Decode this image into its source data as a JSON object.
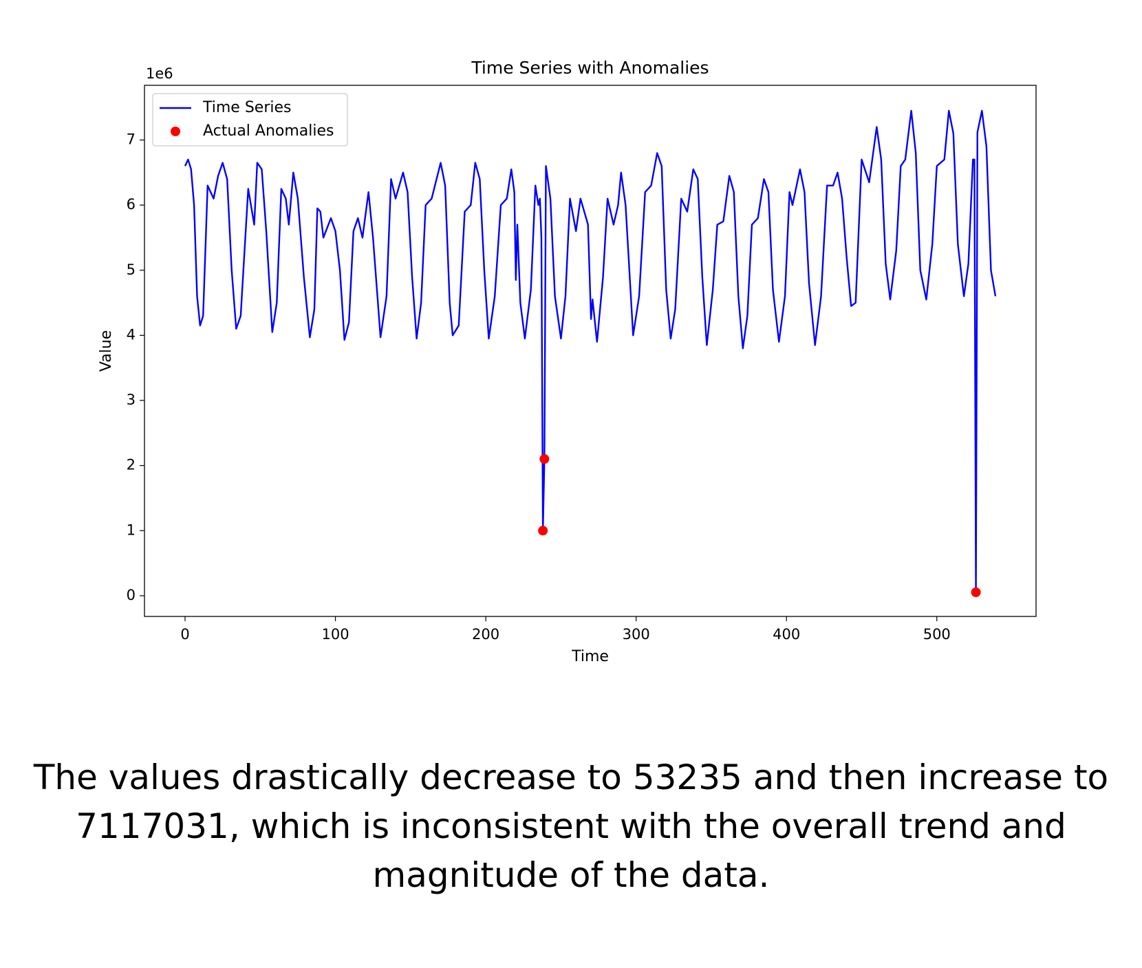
{
  "chart_data": {
    "type": "line",
    "title": "Time Series with Anomalies",
    "x_label": "Time",
    "y_label": "Value",
    "y_multiplier_label": "1e6",
    "xlim": [
      -27,
      566
    ],
    "ylim": [
      -0.318,
      7.84
    ],
    "xticks": [
      0,
      100,
      200,
      300,
      400,
      500
    ],
    "yticks": [
      0,
      1,
      2,
      3,
      4,
      5,
      6,
      7
    ],
    "legend": "upper left",
    "series": [
      {
        "name": "Time Series",
        "type": "line",
        "color": "#0000ff",
        "x": [
          0,
          2,
          4,
          6,
          8,
          10,
          12,
          15,
          17,
          19,
          22,
          25,
          28,
          31,
          34,
          37,
          42,
          46,
          48,
          51,
          54,
          58,
          61,
          64,
          67,
          69,
          72,
          75,
          79,
          83,
          86,
          88,
          90,
          92,
          97,
          100,
          103,
          106,
          109,
          112,
          115,
          118,
          122,
          125,
          130,
          134,
          137,
          140,
          145,
          148,
          151,
          154,
          157,
          160,
          164,
          170,
          173,
          176,
          178,
          182,
          186,
          190,
          193,
          196,
          199,
          202,
          206,
          210,
          214,
          217,
          219,
          220,
          221,
          223,
          226,
          230,
          233,
          235,
          236,
          237,
          238,
          239,
          240,
          243,
          246,
          250,
          253,
          256,
          260,
          263,
          268,
          270,
          271,
          274,
          278,
          281,
          285,
          288,
          290,
          293,
          298,
          302,
          306,
          310,
          314,
          317,
          320,
          323,
          326,
          330,
          334,
          338,
          341,
          344,
          347,
          351,
          354,
          358,
          362,
          365,
          368,
          371,
          374,
          377,
          381,
          385,
          388,
          391,
          395,
          399,
          402,
          404,
          409,
          412,
          415,
          419,
          423,
          427,
          431,
          434,
          437,
          440,
          443,
          446,
          450,
          455,
          460,
          463,
          466,
          469,
          473,
          476,
          479,
          483,
          486,
          489,
          493,
          497,
          500,
          505,
          508,
          511,
          514,
          518,
          521,
          524,
          525,
          526,
          527,
          530,
          533,
          536,
          539
        ],
        "values": [
          6.6,
          6.7,
          6.55,
          6.0,
          4.6,
          4.15,
          4.3,
          6.3,
          6.2,
          6.1,
          6.45,
          6.65,
          6.4,
          5.0,
          4.1,
          4.3,
          6.25,
          5.7,
          6.65,
          6.55,
          5.6,
          4.05,
          4.5,
          6.25,
          6.1,
          5.7,
          6.5,
          6.1,
          4.9,
          3.97,
          4.4,
          5.95,
          5.9,
          5.5,
          5.8,
          5.6,
          5.0,
          3.93,
          4.2,
          5.6,
          5.8,
          5.5,
          6.2,
          5.5,
          3.97,
          4.6,
          6.4,
          6.1,
          6.5,
          6.2,
          4.9,
          3.95,
          4.5,
          6.0,
          6.1,
          6.65,
          6.3,
          4.5,
          4.0,
          4.15,
          5.9,
          6.0,
          6.65,
          6.4,
          5.0,
          3.95,
          4.6,
          6.0,
          6.1,
          6.55,
          6.2,
          4.85,
          5.7,
          4.5,
          3.95,
          4.7,
          6.3,
          6.0,
          6.1,
          5.5,
          1.0,
          2.1,
          6.6,
          6.1,
          4.6,
          3.95,
          4.6,
          6.1,
          5.6,
          6.1,
          5.7,
          4.25,
          4.55,
          3.9,
          4.9,
          6.1,
          5.7,
          6.0,
          6.5,
          6.0,
          4.0,
          4.6,
          6.2,
          6.3,
          6.8,
          6.6,
          4.7,
          3.95,
          4.4,
          6.1,
          5.9,
          6.55,
          6.4,
          4.9,
          3.85,
          4.7,
          5.7,
          5.75,
          6.45,
          6.2,
          4.6,
          3.8,
          4.3,
          5.7,
          5.8,
          6.4,
          6.2,
          4.7,
          3.9,
          4.6,
          6.2,
          6.0,
          6.55,
          6.2,
          4.8,
          3.85,
          4.6,
          6.3,
          6.3,
          6.5,
          6.1,
          5.2,
          4.45,
          4.5,
          6.7,
          6.35,
          7.2,
          6.7,
          5.1,
          4.55,
          5.3,
          6.6,
          6.7,
          7.45,
          6.8,
          5.0,
          4.55,
          5.4,
          6.6,
          6.7,
          7.45,
          7.1,
          5.4,
          4.6,
          5.1,
          6.7,
          6.7,
          0.053235,
          7.117031,
          7.45,
          6.9,
          5.0,
          4.6
        ]
      },
      {
        "name": "Actual Anomalies",
        "type": "scatter",
        "color": "#ff0000",
        "x": [
          238,
          239,
          526
        ],
        "values": [
          1.0,
          2.1,
          0.053235
        ]
      }
    ]
  },
  "caption": "The values drastically decrease to 53235 and then increase to 7117031, which is inconsistent with the overall trend and magnitude of the data."
}
